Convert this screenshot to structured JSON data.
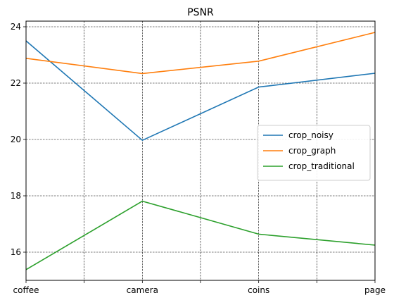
{
  "chart_data": {
    "type": "line",
    "title": "PSNR",
    "xlabel": "",
    "ylabel": "",
    "categories": [
      "coffee",
      "camera",
      "coins",
      "page"
    ],
    "x_ticks": [
      {
        "pos": 0,
        "label": "coffee"
      },
      {
        "pos": 0.5,
        "label": ""
      },
      {
        "pos": 1,
        "label": "camera"
      },
      {
        "pos": 1.5,
        "label": ""
      },
      {
        "pos": 2,
        "label": "coins"
      },
      {
        "pos": 2.5,
        "label": ""
      },
      {
        "pos": 3,
        "label": "page"
      }
    ],
    "xlim": [
      0,
      3
    ],
    "ylim": [
      15.0,
      24.2
    ],
    "y_ticks": [
      16,
      18,
      20,
      22,
      24
    ],
    "grid": true,
    "legend_position": "center-right",
    "series": [
      {
        "name": "crop_noisy",
        "color": "#1f77b4",
        "values": [
          23.5,
          19.97,
          21.86,
          22.35
        ]
      },
      {
        "name": "crop_graph",
        "color": "#ff7f0e",
        "values": [
          22.88,
          22.34,
          22.78,
          23.8
        ]
      },
      {
        "name": "crop_traditional",
        "color": "#2ca02c",
        "values": [
          15.38,
          17.81,
          16.64,
          16.25
        ]
      }
    ]
  }
}
